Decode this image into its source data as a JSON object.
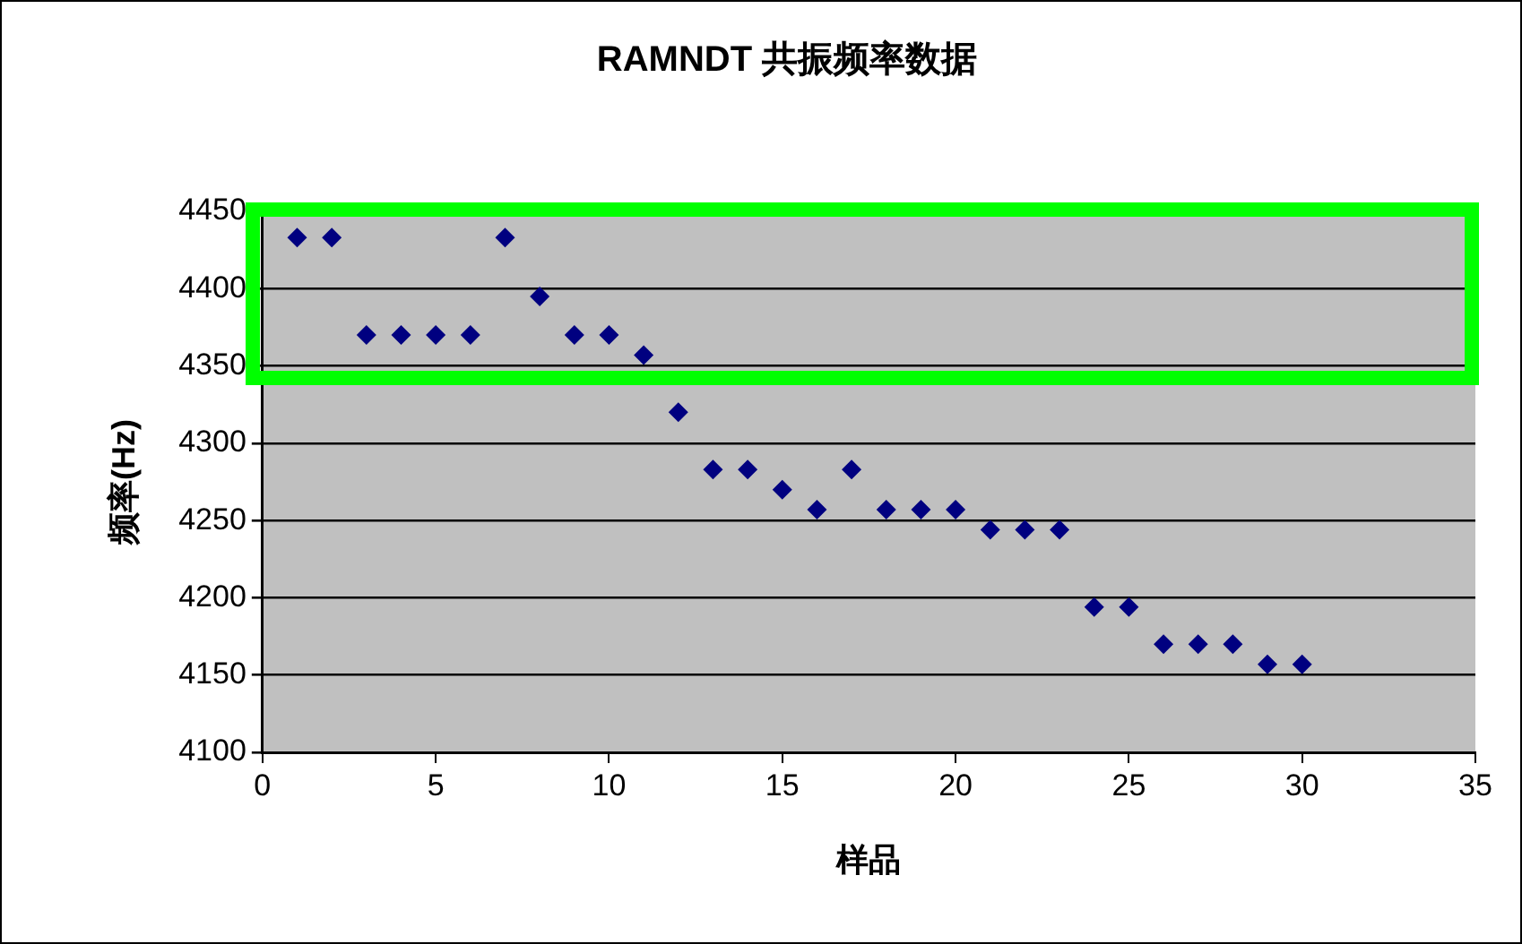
{
  "chart_data": {
    "type": "scatter",
    "title": "RAMNDT 共振频率数据",
    "xlabel": "样品",
    "ylabel": "频率(Hz)",
    "x": [
      1,
      2,
      3,
      4,
      5,
      6,
      7,
      8,
      9,
      10,
      11,
      12,
      13,
      14,
      15,
      16,
      17,
      18,
      19,
      20,
      21,
      22,
      23,
      24,
      25,
      26,
      27,
      28,
      29,
      30
    ],
    "series": [
      {
        "color": "#000080",
        "values": [
          4433,
          4433,
          4370,
          4370,
          4370,
          4370,
          4433,
          4395,
          4370,
          4370,
          4357,
          4320,
          4283,
          4283,
          4270,
          4257,
          4283,
          4257,
          4257,
          4257,
          4244,
          4244,
          4244,
          4194,
          4194,
          4170,
          4170,
          4170,
          4157,
          4157
        ]
      }
    ],
    "xlim": [
      0,
      35
    ],
    "xticks": [
      0,
      5,
      10,
      15,
      20,
      25,
      30,
      35
    ],
    "ylim": [
      4100,
      4450
    ],
    "yticks": [
      4100,
      4150,
      4200,
      4250,
      4300,
      4350,
      4400,
      4450
    ],
    "grid": "y",
    "legend": false,
    "marker": "diamond"
  }
}
